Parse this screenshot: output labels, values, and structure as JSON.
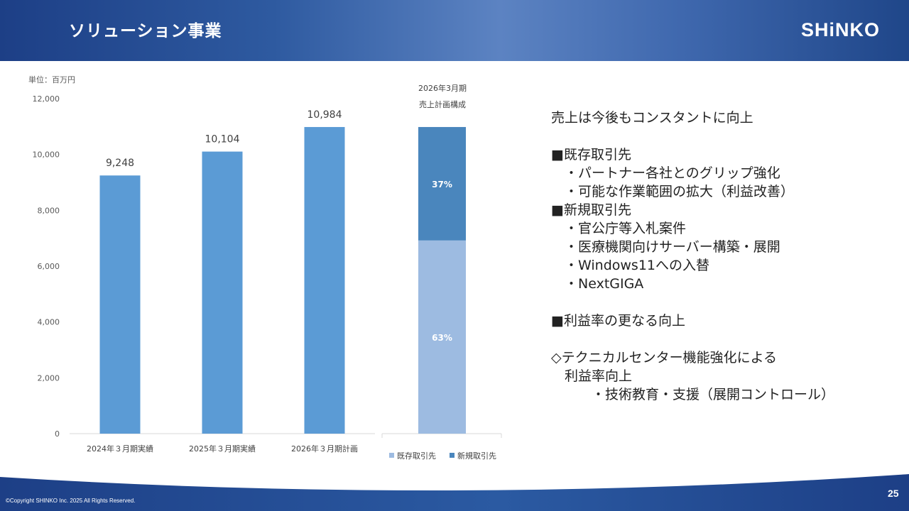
{
  "header": {
    "title": "ソリューション事業",
    "logo_text": "SHiNKO"
  },
  "footer": {
    "copyright": "©Copyright SHINKO Inc. 2025 All Rights Reserved.",
    "page_number": "25"
  },
  "colors": {
    "bar": "#5b9bd5",
    "existing": "#9dbbe1",
    "new": "#4a86bd",
    "header_dark": "#1d3f86"
  },
  "chart_data": [
    {
      "type": "bar",
      "unit_label": "単位：百万円",
      "categories": [
        "2024年３月期実績",
        "2025年３月期実績",
        "2026年３月期計画"
      ],
      "values": [
        9248,
        10104,
        10984
      ],
      "value_labels": [
        "9,248",
        "10,104",
        "10,984"
      ],
      "ylim": [
        0,
        12000
      ],
      "yticks": [
        0,
        2000,
        4000,
        6000,
        8000,
        10000,
        12000
      ],
      "ytick_labels": [
        "0",
        "2,000",
        "4,000",
        "6,000",
        "8,000",
        "10,000",
        "12,000"
      ],
      "grid": false
    },
    {
      "type": "bar",
      "stacked": true,
      "title_lines": [
        "2026年3月期",
        "売上計画構成"
      ],
      "total": 10984,
      "series": [
        {
          "name": "既存取引先",
          "share": 0.63,
          "label": "63%",
          "color": "#9dbbe1"
        },
        {
          "name": "新規取引先",
          "share": 0.37,
          "label": "37%",
          "color": "#4a86bd"
        }
      ],
      "legend_position": "bottom"
    }
  ],
  "text_panel": {
    "lines": [
      "売上は今後もコンスタントに向上",
      "",
      "■既存取引先",
      "　・パートナー各社とのグリップ強化",
      "　・可能な作業範囲の拡大（利益改善）",
      "■新規取引先",
      "　・官公庁等入札案件",
      "　・医療機関向けサーバー構築・展開",
      "　・Windows11への入替",
      "　・NextGIGA",
      "",
      "■利益率の更なる向上",
      "",
      "◇テクニカルセンター機能強化による",
      "　利益率向上",
      "　　　・技術教育・支援（展開コントロール）"
    ]
  }
}
